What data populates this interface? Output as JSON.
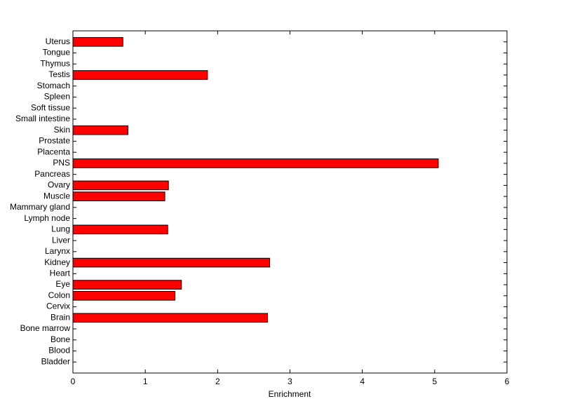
{
  "chart_data": {
    "type": "barh",
    "xlabel": "Enrichment",
    "categories": [
      "Bladder",
      "Blood",
      "Bone",
      "Bone marrow",
      "Brain",
      "Cervix",
      "Colon",
      "Eye",
      "Heart",
      "Kidney",
      "Larynx",
      "Liver",
      "Lung",
      "Lymph node",
      "Mammary gland",
      "Muscle",
      "Ovary",
      "Pancreas",
      "PNS",
      "Placenta",
      "Prostate",
      "Skin",
      "Small intestine",
      "Soft tissue",
      "Spleen",
      "Stomach",
      "Testis",
      "Thymus",
      "Tongue",
      "Uterus"
    ],
    "values": [
      0,
      0,
      0,
      0,
      2.69,
      0,
      1.41,
      1.5,
      0,
      2.72,
      0,
      0,
      1.31,
      0,
      0,
      1.27,
      1.32,
      0,
      5.05,
      0,
      0,
      0.76,
      0,
      0,
      0,
      0,
      1.86,
      0,
      0,
      0.69
    ],
    "color": "#ff0000",
    "xlim": [
      0,
      6
    ],
    "xticks": [
      0,
      1,
      2,
      3,
      4,
      5,
      6
    ]
  }
}
